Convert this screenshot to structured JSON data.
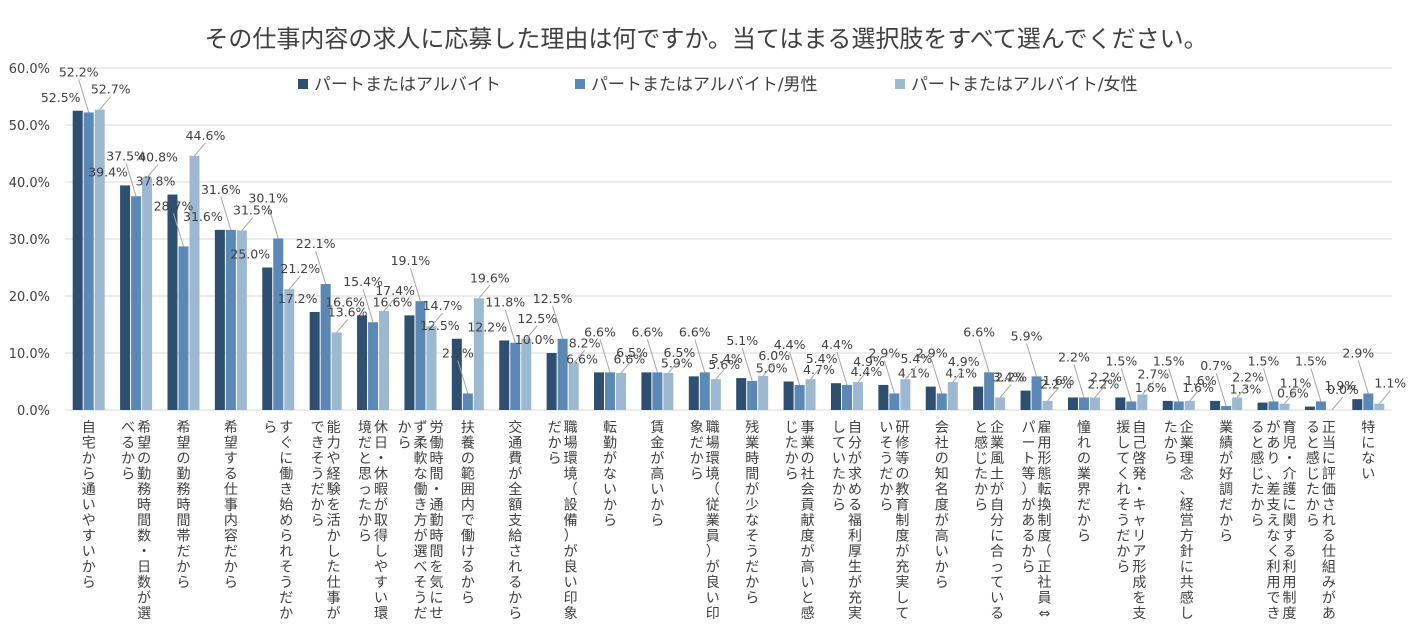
{
  "chart_data": {
    "type": "bar",
    "title": "その仕事内容の求人に応募した理由は何ですか。当てはまる選択肢をすべて選んでください。",
    "xlabel": "",
    "ylabel": "",
    "ylim": [
      0,
      60
    ],
    "yticks": [
      "0.0%",
      "10.0%",
      "20.0%",
      "30.0%",
      "40.0%",
      "50.0%",
      "60.0%"
    ],
    "grid": true,
    "legend_position": "top",
    "categories": [
      "自宅から通いやすいから",
      "希望の勤務時間数・日数が選べるから",
      "希望の勤務時間帯だから",
      "希望する仕事内容だから",
      "すぐに働き始められそうだから",
      "能力や経験を活かした仕事ができそうだから",
      "休日・休暇が取得しやすい環境だと思ったから",
      "労働時間・通勤時間を気にせず柔軟な働き方が選べそうだから",
      "扶養の範囲内で働けるから",
      "交通費が全額支給されるから",
      "職場環境（設備）が良い印象だから",
      "転勤がないから",
      "賃金が高いから",
      "職場環境（従業員）が良い印象だから",
      "残業時間が少なそうだから",
      "事業の社会貢献度が高いと感じたから",
      "自分が求める福利厚生が充実していたから",
      "研修等の教育制度が充実していそうだから",
      "会社の知名度が高いから",
      "企業風土が自分に合っていると感じたから",
      "雇用形態転換制度（正社員⇔パート等）があるから",
      "憧れの業界だから",
      "自己啓発・キャリア形成を支援してくれそうだから",
      "企業理念、経営方針に共感したから",
      "業績が好調だから",
      "育児・介護に関する利用制度があり、差支えなく利用できると感じたから",
      "正当に評価される仕組みがあると感じたから",
      "特にない"
    ],
    "series": [
      {
        "name": "パートまたはアルバイト",
        "color": "#2e4f6f",
        "values": [
          52.5,
          39.4,
          37.8,
          31.6,
          25.0,
          17.2,
          16.6,
          16.6,
          12.5,
          12.2,
          10.0,
          6.6,
          6.6,
          5.9,
          5.6,
          5.0,
          4.7,
          4.4,
          4.1,
          4.1,
          3.4,
          2.2,
          2.2,
          1.6,
          1.6,
          1.3,
          0.6,
          1.9
        ],
        "labels": [
          "52.5%",
          "39.4%",
          "37.8%",
          "31.6%",
          "25.0%",
          "17.2%",
          "16.6%",
          "16.6%",
          "12.5%",
          "12.2%",
          "10.0%",
          "6.6%",
          "6.6%",
          "5.9%",
          "5.6%",
          "5.0%",
          "4.7%",
          "4.4%",
          "4.1%",
          "4.1%",
          "3.4%",
          "2.2%",
          "2.2%",
          "1.6%",
          "1.6%",
          "1.3%",
          "0.6%",
          "1.9%"
        ]
      },
      {
        "name": "パートまたはアルバイト/男性",
        "color": "#5b88b4",
        "values": [
          52.2,
          37.5,
          28.7,
          31.6,
          30.1,
          22.1,
          15.4,
          19.1,
          2.9,
          11.8,
          12.5,
          6.6,
          6.6,
          6.6,
          5.1,
          4.4,
          4.4,
          2.9,
          2.9,
          6.6,
          5.9,
          2.2,
          1.5,
          1.5,
          0.7,
          1.5,
          1.5,
          2.9
        ],
        "labels": [
          "52.2%",
          "37.5%",
          "28.7%",
          "31.6%",
          "30.1%",
          "22.1%",
          "15.4%",
          "19.1%",
          "2.9%",
          "11.8%",
          "12.5%",
          "6.6%",
          "6.6%",
          "6.6%",
          "5.1%",
          "4.4%",
          "4.4%",
          "2.9%",
          "2.9%",
          "6.6%",
          "5.9%",
          "2.2%",
          "1.5%",
          "1.5%",
          "0.7%",
          "1.5%",
          "1.5%",
          "2.9%"
        ]
      },
      {
        "name": "パートまたはアルバイト/女性",
        "color": "#9db8d1",
        "values": [
          52.7,
          40.8,
          44.6,
          31.5,
          21.2,
          13.6,
          17.4,
          14.7,
          19.6,
          12.5,
          8.2,
          6.5,
          6.5,
          5.4,
          6.0,
          5.4,
          4.9,
          5.4,
          4.9,
          2.2,
          1.6,
          2.2,
          2.7,
          1.6,
          2.2,
          1.1,
          0.0,
          1.1
        ],
        "labels": [
          "52.7%",
          "40.8%",
          "44.6%",
          "31.5%",
          "21.2%",
          "13.6%",
          "17.4%",
          "14.7%",
          "19.6%",
          "12.5%",
          "8.2%",
          "6.5%",
          "6.5%",
          "5.4%",
          "6.0%",
          "5.4%",
          "4.9%",
          "5.4%",
          "4.9%",
          "2.2%",
          "1.6%",
          "2.2%",
          "2.7%",
          "1.6%",
          "2.2%",
          "1.1%",
          "0.0%",
          "1.1%"
        ]
      }
    ]
  }
}
